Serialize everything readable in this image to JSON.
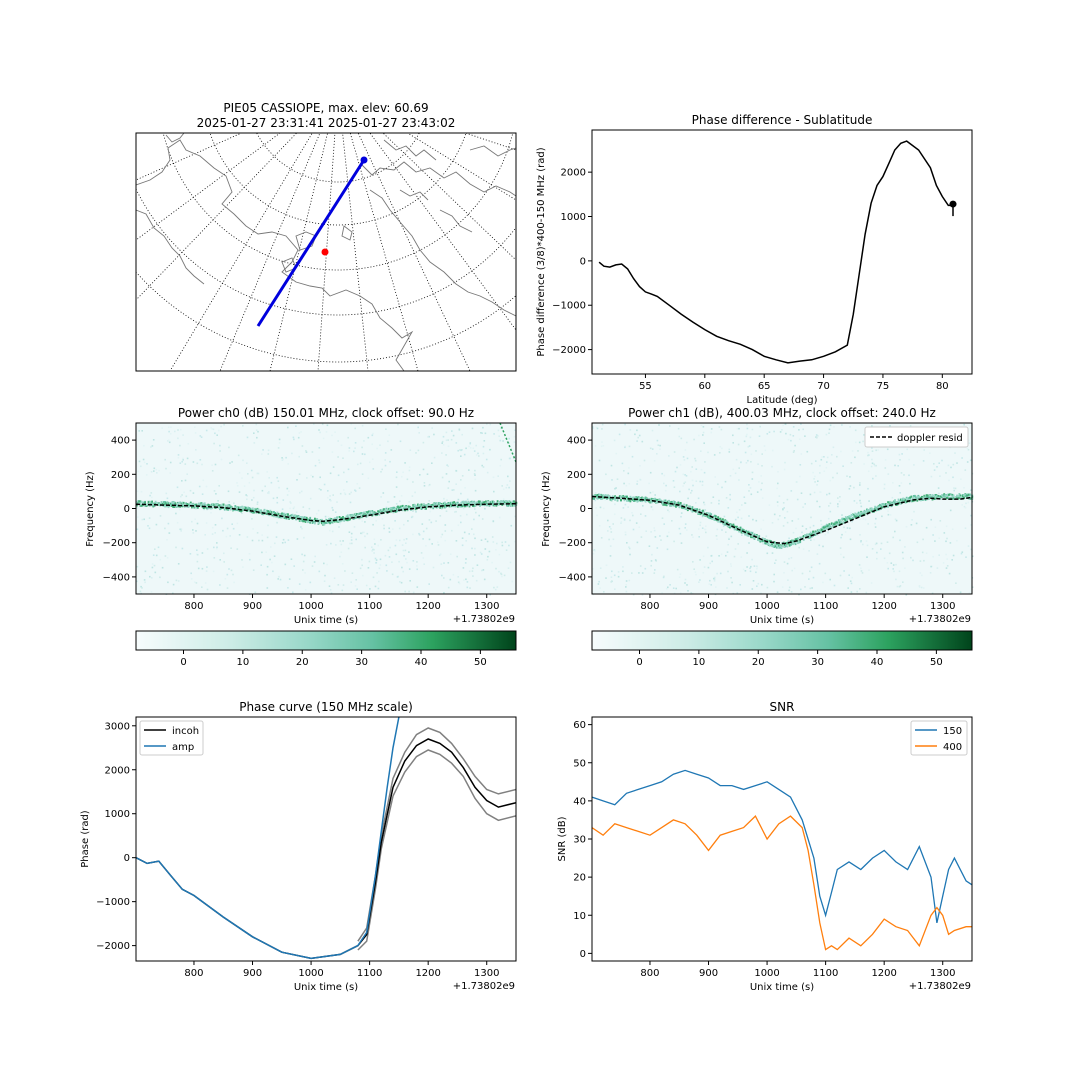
{
  "figure": {
    "map_title_line1": "PIE05 CASSIOPE, max. elev: 60.69",
    "map_title_line2": "2025-01-27 23:31:41 2025-01-27 23:43:02",
    "colors": {
      "track": "#0000dd",
      "station": "#ff0000",
      "series150": "#1f77b4",
      "series400": "#ff7f0e",
      "coastline": "#777777"
    }
  },
  "chart_data": [
    {
      "id": "phase_lat",
      "type": "line",
      "title": "Phase difference - Sublatitude",
      "xlabel": "Latitude (deg)",
      "ylabel": "Phase difference (3/8)*400-150 MHz (rad)",
      "xlim": [
        50.5,
        82.5
      ],
      "ylim": [
        -2550,
        2950
      ],
      "xticks": [
        50,
        55,
        60,
        65,
        70,
        75,
        80
      ],
      "yticks": [
        -2000,
        -1000,
        0,
        1000,
        2000
      ],
      "grid": false,
      "series": [
        {
          "color": "#000000",
          "x": [
            51.1,
            51.5,
            52.0,
            52.5,
            53.0,
            53.5,
            54.0,
            54.5,
            55.0,
            55.5,
            56.0,
            57.0,
            58.0,
            59.0,
            60.0,
            61.0,
            62.0,
            63.0,
            64.0,
            65.0,
            66.0,
            67.0,
            68.0,
            69.0,
            70.0,
            71.0,
            72.0,
            72.5,
            73.0,
            73.5,
            74.0,
            74.5,
            75.0,
            75.5,
            76.0,
            76.5,
            77.0,
            78.0,
            79.0,
            79.5,
            80.0,
            80.5,
            80.9
          ],
          "y": [
            -30,
            -120,
            -140,
            -90,
            -70,
            -180,
            -400,
            -580,
            -700,
            -750,
            -800,
            -1000,
            -1200,
            -1380,
            -1550,
            -1700,
            -1800,
            -1880,
            -2000,
            -2150,
            -2230,
            -2300,
            -2260,
            -2230,
            -2150,
            -2050,
            -1900,
            -1200,
            -300,
            600,
            1300,
            1700,
            1900,
            2200,
            2500,
            2650,
            2700,
            2500,
            2100,
            1700,
            1450,
            1250,
            1250
          ]
        }
      ],
      "marker": {
        "x": 80.9,
        "y": 1280
      }
    },
    {
      "id": "power_ch0",
      "type": "heatmap",
      "title": "Power ch0 (dB) 150.01 MHz, clock offset: 90.0 Hz",
      "xlabel": "Unix time (s)",
      "ylabel": "Frequency (Hz)",
      "offset_label": "+1.73802e9",
      "xlim": [
        701,
        1350
      ],
      "ylim": [
        -500,
        500
      ],
      "xticks": [
        800,
        900,
        1000,
        1100,
        1200,
        1300
      ],
      "yticks": [
        -400,
        -200,
        0,
        200,
        400
      ],
      "colorbar": {
        "ticks": [
          0,
          10,
          20,
          30,
          40,
          50
        ],
        "range": [
          -8,
          56
        ]
      },
      "signal": {
        "x": [
          701,
          750,
          800,
          850,
          900,
          950,
          1000,
          1020,
          1050,
          1100,
          1150,
          1200,
          1250,
          1300,
          1350
        ],
        "y": [
          30,
          25,
          20,
          10,
          -10,
          -40,
          -70,
          -80,
          -60,
          -30,
          0,
          15,
          25,
          30,
          30
        ]
      },
      "series": [
        {
          "name": "",
          "style": "dashed",
          "color": "#000000",
          "x": [
            701,
            750,
            800,
            850,
            900,
            950,
            1000,
            1020,
            1050,
            1100,
            1150,
            1200,
            1250,
            1300,
            1350
          ],
          "y": [
            25,
            20,
            15,
            5,
            -15,
            -45,
            -70,
            -75,
            -65,
            -40,
            -10,
            10,
            20,
            25,
            28
          ]
        }
      ]
    },
    {
      "id": "power_ch1",
      "type": "heatmap",
      "title": "Power ch1 (dB), 400.03 MHz, clock offset: 240.0 Hz",
      "xlabel": "Unix time (s)",
      "ylabel": "Frequency (Hz)",
      "offset_label": "+1.73802e9",
      "xlim": [
        701,
        1350
      ],
      "ylim": [
        -500,
        500
      ],
      "xticks": [
        800,
        900,
        1000,
        1100,
        1200,
        1300
      ],
      "yticks": [
        -400,
        -200,
        0,
        200,
        400
      ],
      "colorbar": {
        "ticks": [
          0,
          10,
          20,
          30,
          40,
          50
        ],
        "range": [
          -8,
          56
        ]
      },
      "legend": [
        "doppler resid"
      ],
      "signal": {
        "x": [
          701,
          750,
          800,
          850,
          900,
          950,
          1000,
          1020,
          1050,
          1100,
          1150,
          1200,
          1250,
          1300,
          1350
        ],
        "y": [
          70,
          60,
          50,
          20,
          -40,
          -120,
          -200,
          -220,
          -190,
          -110,
          -40,
          20,
          60,
          70,
          70
        ]
      },
      "series": [
        {
          "name": "doppler resid",
          "style": "dashed",
          "color": "#000000",
          "x": [
            701,
            750,
            800,
            850,
            900,
            950,
            1000,
            1030,
            1050,
            1100,
            1150,
            1200,
            1250,
            1280,
            1300,
            1330,
            1350
          ],
          "y": [
            70,
            60,
            48,
            20,
            -40,
            -120,
            -195,
            -205,
            -190,
            -130,
            -60,
            10,
            50,
            60,
            55,
            55,
            65
          ]
        }
      ]
    },
    {
      "id": "phase_curve",
      "type": "line",
      "title": "Phase curve (150 MHz scale)",
      "xlabel": "Unix time (s)",
      "ylabel": "Phase (rad)",
      "offset_label": "+1.73802e9",
      "xlim": [
        701,
        1350
      ],
      "ylim": [
        -2350,
        3200
      ],
      "xticks": [
        800,
        900,
        1000,
        1100,
        1200,
        1300
      ],
      "yticks": [
        -2000,
        -1000,
        0,
        1000,
        2000,
        3000
      ],
      "legend": [
        "incoh",
        "amp"
      ],
      "series": [
        {
          "name": "",
          "color": "#808080",
          "x": [
            1080,
            1095,
            1110,
            1120,
            1140,
            1160,
            1180,
            1200,
            1220,
            1240,
            1260,
            1280,
            1300,
            1320,
            1350
          ],
          "y": [
            -1900,
            -1600,
            -400,
            500,
            1800,
            2400,
            2800,
            2950,
            2850,
            2600,
            2250,
            1850,
            1550,
            1450,
            1550
          ]
        },
        {
          "name": "",
          "color": "#808080",
          "x": [
            1080,
            1095,
            1110,
            1120,
            1140,
            1160,
            1180,
            1200,
            1220,
            1240,
            1260,
            1280,
            1300,
            1320,
            1350
          ],
          "y": [
            -2100,
            -1900,
            -700,
            200,
            1400,
            1950,
            2300,
            2450,
            2350,
            2150,
            1850,
            1350,
            1000,
            850,
            950
          ]
        },
        {
          "name": "incoh",
          "color": "#000000",
          "x": [
            701,
            720,
            740,
            760,
            780,
            800,
            850,
            900,
            950,
            1000,
            1050,
            1080,
            1095,
            1110,
            1120,
            1140,
            1160,
            1180,
            1200,
            1220,
            1240,
            1260,
            1280,
            1300,
            1320,
            1350
          ],
          "y": [
            0,
            -130,
            -80,
            -400,
            -720,
            -860,
            -1350,
            -1800,
            -2150,
            -2290,
            -2200,
            -2000,
            -1750,
            -550,
            350,
            1600,
            2200,
            2550,
            2700,
            2600,
            2400,
            2050,
            1600,
            1300,
            1150,
            1250
          ]
        },
        {
          "name": "amp",
          "color": "#1f77b4",
          "x": [
            701,
            720,
            740,
            760,
            780,
            800,
            850,
            900,
            950,
            1000,
            1050,
            1080,
            1095,
            1110,
            1120,
            1130,
            1140,
            1150
          ],
          "y": [
            0,
            -130,
            -80,
            -400,
            -720,
            -860,
            -1350,
            -1800,
            -2150,
            -2290,
            -2200,
            -2000,
            -1700,
            -400,
            600,
            1600,
            2500,
            3200
          ]
        }
      ]
    },
    {
      "id": "snr",
      "type": "line",
      "title": "SNR",
      "xlabel": "Unix time (s)",
      "ylabel": "SNR (dB)",
      "offset_label": "+1.73802e9",
      "xlim": [
        701,
        1350
      ],
      "ylim": [
        -2,
        62
      ],
      "xticks": [
        800,
        900,
        1000,
        1100,
        1200,
        1300
      ],
      "yticks": [
        0,
        10,
        20,
        30,
        40,
        50,
        60
      ],
      "legend": [
        "150",
        "400"
      ],
      "series": [
        {
          "name": "150",
          "color": "#1f77b4",
          "x": [
            701,
            720,
            740,
            760,
            780,
            800,
            820,
            840,
            860,
            880,
            900,
            920,
            940,
            960,
            980,
            1000,
            1020,
            1040,
            1060,
            1080,
            1090,
            1100,
            1110,
            1120,
            1140,
            1160,
            1180,
            1200,
            1220,
            1240,
            1260,
            1280,
            1290,
            1300,
            1310,
            1320,
            1340,
            1350
          ],
          "y": [
            41,
            40,
            39,
            42,
            43,
            44,
            45,
            47,
            48,
            47,
            46,
            44,
            44,
            43,
            44,
            45,
            43,
            41,
            35,
            25,
            15,
            10,
            16,
            22,
            24,
            22,
            25,
            27,
            24,
            22,
            28,
            20,
            8,
            15,
            22,
            25,
            19,
            18
          ]
        },
        {
          "name": "400",
          "color": "#ff7f0e",
          "x": [
            701,
            720,
            740,
            760,
            780,
            800,
            820,
            840,
            860,
            880,
            900,
            920,
            940,
            960,
            980,
            1000,
            1020,
            1040,
            1060,
            1070,
            1080,
            1090,
            1100,
            1110,
            1120,
            1140,
            1160,
            1180,
            1200,
            1220,
            1240,
            1260,
            1280,
            1290,
            1300,
            1310,
            1320,
            1340,
            1350
          ],
          "y": [
            33,
            31,
            34,
            33,
            32,
            31,
            33,
            35,
            34,
            31,
            27,
            31,
            32,
            33,
            36,
            30,
            34,
            36,
            33,
            27,
            18,
            8,
            1,
            2,
            1,
            4,
            2,
            5,
            9,
            7,
            6,
            2,
            10,
            12,
            10,
            5,
            6,
            7,
            7
          ]
        }
      ]
    }
  ]
}
